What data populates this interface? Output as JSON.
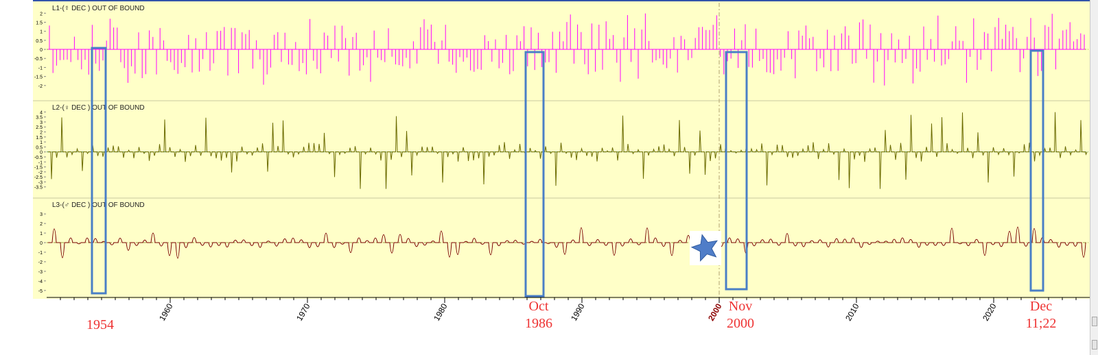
{
  "chart_data": {
    "type": "line",
    "x_axis": {
      "range": [
        1950,
        2027
      ],
      "tick_labels": [
        "1960",
        "1970",
        "1980",
        "1990",
        "2000",
        "2010",
        "2020"
      ],
      "highlight_tick": "2000",
      "highlight_color": "#8b0000"
    },
    "panels": [
      {
        "label": "L1-(",
        "glyph": "☿",
        "label_rest": " DEC ) OUT OF BOUND",
        "color": "#ff00ff",
        "ylim": [
          -2.5,
          2.2
        ],
        "yticks": [
          "2",
          "1.5",
          "1",
          "0.5",
          "0",
          "-0.5",
          "-1",
          "-1.5",
          "-2"
        ]
      },
      {
        "label": "L2-(",
        "glyph": "♀",
        "label_rest": " DEC ) OUT OF BOUND",
        "color": "#6b6b00",
        "ylim": [
          -4,
          4.3
        ],
        "yticks": [
          "4",
          "3.5",
          "3",
          "2.5",
          "2",
          "1.5",
          "1",
          "0.5",
          "0",
          "-0.5",
          "-1",
          "-1.5",
          "-2",
          "-2.5",
          "-3",
          "-3.5"
        ]
      },
      {
        "label": "L3-(",
        "glyph": "♂",
        "label_rest": " DEC ) OUT OF BOUND",
        "color": "#7a0000",
        "ylim": [
          -5.3,
          3.8
        ],
        "yticks": [
          "3",
          "2",
          "1",
          "0",
          "-1",
          "-2",
          "-3",
          "-4",
          "-5"
        ]
      }
    ],
    "highlights": [
      {
        "x_start": 1954.3,
        "x_end": 1955.3,
        "label_lines": [
          "1954"
        ]
      },
      {
        "x_start": 1985.9,
        "x_end": 1987.2,
        "label_lines": [
          "Oct",
          "1986"
        ]
      },
      {
        "x_start": 2000.5,
        "x_end": 2002.0,
        "label_lines": [
          "Nov",
          "2000"
        ]
      },
      {
        "x_start": 2022.7,
        "x_end": 2023.6,
        "label_lines": [
          "Dec",
          "11;22"
        ]
      }
    ],
    "marker": {
      "type": "star",
      "x": 1999.5,
      "color": "#4f7dc8"
    },
    "reference_line_x": 2000,
    "colors": {
      "background": "#ffffc8",
      "highlight_box": "#4a7fc6",
      "annotation_text": "#ee3333",
      "tick_text": "#000000"
    }
  }
}
